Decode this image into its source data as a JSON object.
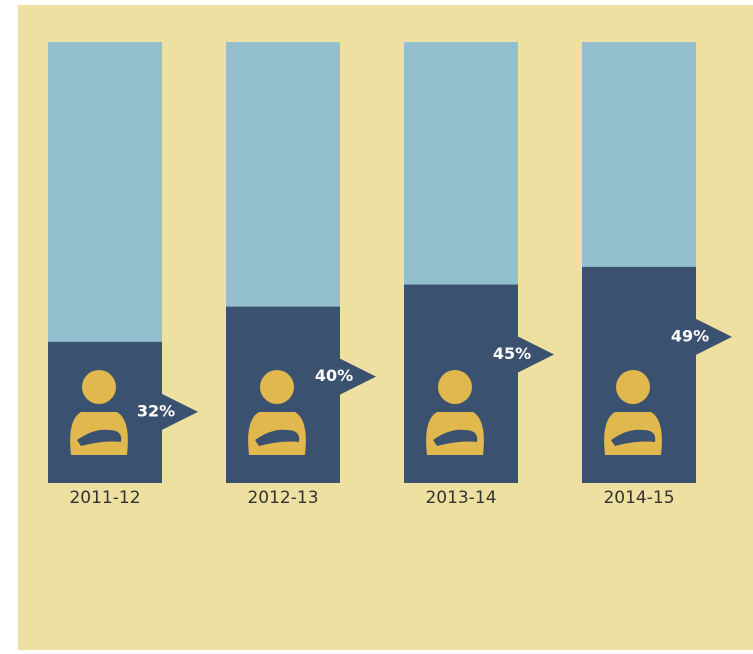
{
  "chart_data": {
    "type": "bar",
    "categories": [
      "2011-12",
      "2012-13",
      "2013-14",
      "2014-15"
    ],
    "values": [
      32,
      40,
      45,
      49
    ],
    "value_labels": [
      "32%",
      "40%",
      "45%",
      "49%"
    ],
    "color": "#3b5170",
    "track_color": "#93bfce",
    "icon_color": "#e0b84e",
    "ylim": [
      0,
      100
    ]
  }
}
